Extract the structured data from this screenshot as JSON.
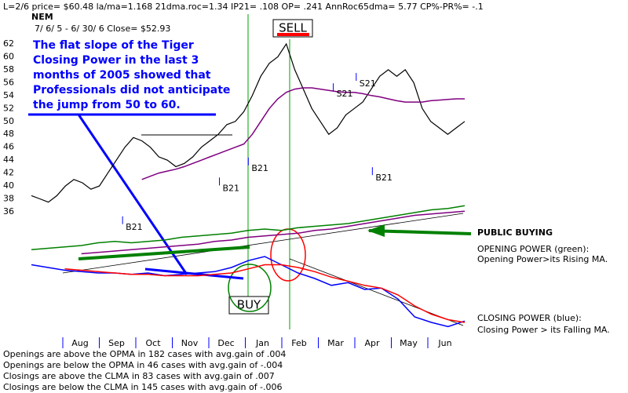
{
  "chart_data": {
    "type": "line",
    "header": "L=2/6  price= $60.48  la/ma=1.168 21dma.roc=1.34 IP21= .108 OP= .241 AnnRoc65dma= 5.77 CP%-PR%= -.1",
    "ticker": "NEM",
    "date_range": "7/ 6/ 5 -  6/ 30/ 6   Close= $52.93",
    "annotation": [
      "The flat slope of the Tiger",
      "Closing Power in the last 3",
      "months of 2005 showed that",
      "Professionals did not anticipate",
      "the jump from 50 to 60."
    ],
    "sell_label": "SELL",
    "buy_label": "BUY",
    "public_buying": "PUBLIC BUYING",
    "opening_power_text": [
      "OPENING POWER (green):",
      "Opening Power>its Rising MA."
    ],
    "closing_power_text": [
      "CLOSING POWER (blue):",
      "Closing Power > its Falling MA."
    ],
    "stats": [
      "Openings are above the OPMA in  182 cases with avg.gain of  .004",
      "Openings are below the OPMA in  46 cases with avg.gain of -.004",
      "Closings are above the CLMA in  83 cases with avg.gain of  .007",
      "Closings are below the CLMA in  145 cases with avg.gain of -.006"
    ],
    "months": [
      "Aug",
      "Sep",
      "Oct",
      "Nov",
      "Dec",
      "Jan",
      "Feb",
      "Mar",
      "Apr",
      "May",
      "Jun"
    ],
    "ylim": [
      36,
      62
    ],
    "yticks": [
      36,
      38,
      40,
      42,
      44,
      46,
      48,
      50,
      52,
      54,
      56,
      58,
      60,
      62
    ],
    "series": [
      {
        "color": "#000000",
        "values": [
          38.5,
          38,
          37.5,
          38.5,
          40,
          41,
          40.5,
          39.5,
          40,
          42,
          44,
          46,
          47.5,
          47,
          46,
          44.5,
          44,
          43,
          43.5,
          44.5,
          46,
          47,
          48,
          49.5,
          50,
          51.5,
          54,
          57,
          59,
          60,
          62,
          58,
          55,
          52,
          50,
          48,
          49,
          51,
          52,
          53,
          55,
          57,
          58,
          57,
          58,
          56,
          52,
          50,
          49,
          48,
          49,
          50
        ]
      },
      {
        "color": "#800080",
        "values": [
          null,
          null,
          null,
          null,
          null,
          null,
          null,
          null,
          null,
          null,
          null,
          null,
          null,
          41,
          41.5,
          42,
          42.3,
          42.6,
          43,
          43.5,
          44,
          44.5,
          45,
          45.5,
          46,
          46.5,
          48,
          50,
          52,
          53.5,
          54.5,
          55,
          55.2,
          55.2,
          55,
          54.8,
          54.6,
          54.5,
          54.5,
          54.3,
          54,
          53.8,
          53.5,
          53.2,
          53,
          53,
          53,
          53.2,
          53.3,
          53.4,
          53.5,
          53.5
        ]
      }
    ],
    "power_ylim": [
      0,
      100
    ],
    "power_series": [
      {
        "color": "#008000",
        "values": [
          61,
          62,
          63,
          64,
          66,
          67,
          66,
          67,
          68,
          70,
          71,
          72,
          73,
          75,
          76,
          75,
          77,
          78,
          79,
          80,
          82,
          84,
          86,
          88,
          90,
          91,
          93
        ]
      },
      {
        "color": "#800080",
        "values": [
          null,
          null,
          null,
          58,
          59,
          60,
          61,
          62,
          63,
          64,
          65,
          67,
          68,
          70,
          71,
          72,
          73,
          75,
          76,
          78,
          80,
          82,
          84,
          86,
          87,
          88,
          89
        ]
      },
      {
        "color": "#0000ff",
        "values": [
          50,
          48,
          46,
          45,
          44,
          44,
          43,
          44,
          42,
          43,
          44,
          45,
          48,
          53,
          56,
          50,
          44,
          40,
          35,
          37,
          32,
          33,
          25,
          12,
          8,
          5,
          9
        ]
      },
      {
        "color": "#ff0000",
        "values": [
          null,
          null,
          47,
          46,
          45,
          44,
          43,
          43,
          42,
          42,
          42,
          43,
          44,
          47,
          50,
          50,
          48,
          45,
          41,
          38,
          35,
          33,
          28,
          20,
          14,
          10,
          8
        ]
      }
    ],
    "signals": [
      {
        "label": "B21",
        "x": 11.1,
        "y": 33.6
      },
      {
        "label": "B21",
        "x": 22.5,
        "y": 39.6
      },
      {
        "label": "B21",
        "x": 25.9,
        "y": 42.7
      },
      {
        "label": "B21",
        "x": 40.5,
        "y": 41.2
      },
      {
        "label": "S21",
        "x": 35.9,
        "y": 54.2
      },
      {
        "label": "S21",
        "x": 38.6,
        "y": 55.8
      }
    ]
  }
}
